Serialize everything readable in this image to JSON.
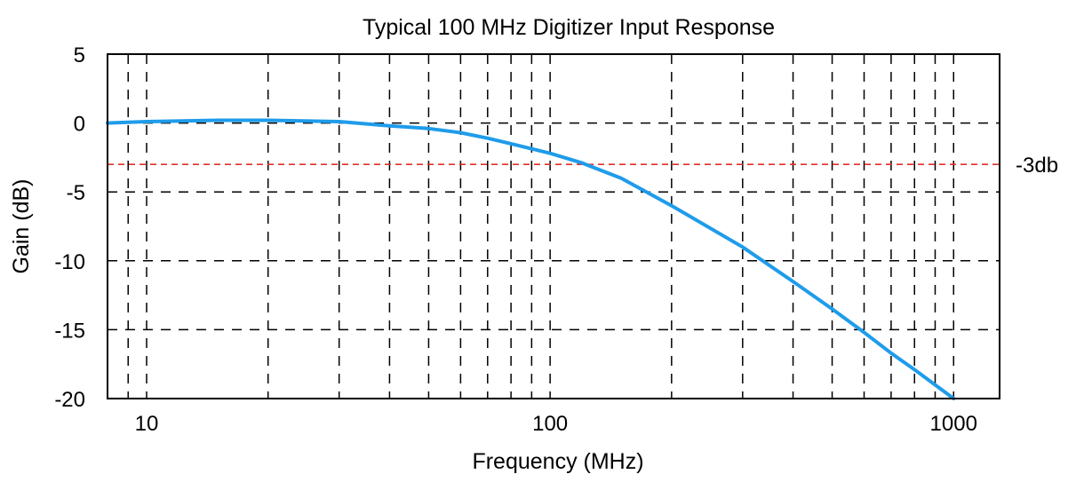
{
  "chart_data": {
    "type": "line",
    "title": "Typical 100 MHz Digitizer Input Response",
    "xlabel": "Frequency (MHz)",
    "ylabel": "Gain (dB)",
    "x_scale": "log",
    "xlim": [
      8,
      1300
    ],
    "ylim": [
      -20,
      5
    ],
    "x_ticks": [
      10,
      100,
      1000
    ],
    "x_tick_labels": [
      "10",
      "100",
      "1000"
    ],
    "y_ticks": [
      5,
      0,
      -5,
      -10,
      -15,
      -20
    ],
    "y_tick_labels": [
      "5",
      "0",
      "-5",
      "-10",
      "-15",
      "-20"
    ],
    "grid": true,
    "grid_style": "dashed",
    "series": [
      {
        "x": [
          8,
          10,
          15,
          20,
          30,
          40,
          50,
          60,
          70,
          80,
          100,
          120,
          150,
          200,
          300,
          400,
          500,
          600,
          700,
          800,
          1000
        ],
        "y": [
          0,
          0.1,
          0.2,
          0.2,
          0.1,
          -0.2,
          -0.4,
          -0.7,
          -1.1,
          -1.5,
          -2.2,
          -2.9,
          -4.0,
          -6.0,
          -9.0,
          -11.5,
          -13.5,
          -15.2,
          -16.7,
          -17.9,
          -20.0
        ],
        "color": "#1f9cea"
      }
    ],
    "reference_line": {
      "y": -3,
      "label": "-3db",
      "color": "#e0302a",
      "style": "dashed"
    }
  }
}
